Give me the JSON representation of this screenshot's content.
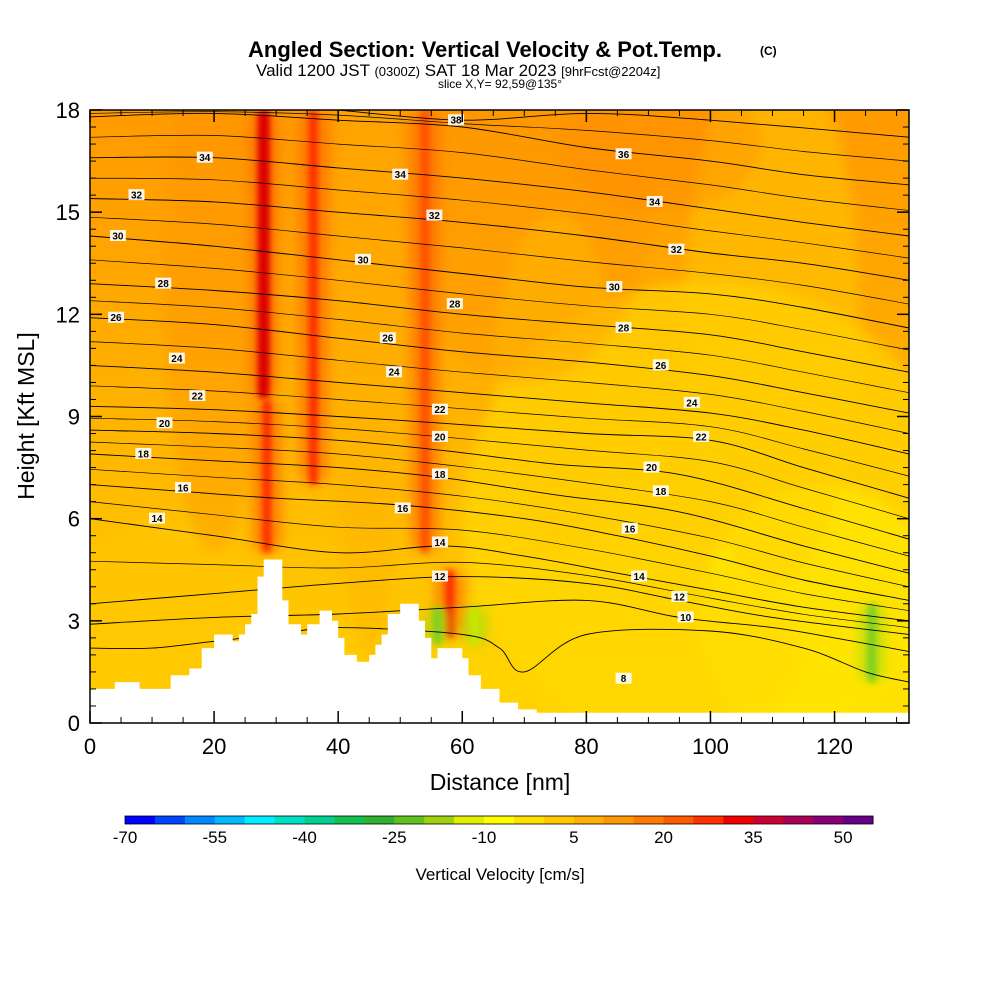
{
  "header": {
    "title": "Angled Section: Vertical Velocity & Pot.Temp.",
    "copyright": "(C)",
    "valid_prefix": "Valid 1200 JST",
    "valid_zulu": "(0300Z)",
    "valid_date": "SAT 18 Mar 2023",
    "forecast": "[9hrFcst@2204z]",
    "slice": "slice X,Y= 92,59@135°"
  },
  "chart_data": {
    "type": "heatmap",
    "title": "Angled Section: Vertical Velocity & Pot.Temp.",
    "xlabel": "Distance [nm]",
    "ylabel": "Height [Kft MSL]",
    "xlim": [
      0,
      132
    ],
    "ylim": [
      0,
      18
    ],
    "x_ticks": [
      "0",
      "20",
      "40",
      "60",
      "80",
      "100",
      "120"
    ],
    "x_tick_values": [
      0,
      20,
      40,
      60,
      80,
      100,
      120
    ],
    "y_ticks": [
      "0",
      "3",
      "6",
      "9",
      "12",
      "15",
      "18"
    ],
    "y_tick_values": [
      0,
      3,
      6,
      9,
      12,
      15,
      18
    ],
    "colorbar": {
      "label": "Vertical Velocity [cm/s]",
      "tick_labels": [
        "-70",
        "-55",
        "-40",
        "-25",
        "-10",
        "5",
        "20",
        "35",
        "50"
      ],
      "colors": [
        "#0000ff",
        "#0044ff",
        "#0088ff",
        "#00bbff",
        "#00eeff",
        "#00e0c0",
        "#00d090",
        "#10c050",
        "#30b030",
        "#60c020",
        "#a0d010",
        "#e0f000",
        "#ffff00",
        "#ffe000",
        "#ffc800",
        "#ffb000",
        "#ff9800",
        "#ff7a00",
        "#ff5a00",
        "#ff3000",
        "#ee0000",
        "#cc0033",
        "#aa0055",
        "#880077",
        "#660088"
      ]
    },
    "vertical_velocity_features": [
      {
        "x": 28,
        "y_min": 9.5,
        "y_max": 18,
        "value": 40
      },
      {
        "x": 28.5,
        "y_min": 5.0,
        "y_max": 9.5,
        "value": 25
      },
      {
        "x": 36,
        "y_min": 7,
        "y_max": 18,
        "value": 25
      },
      {
        "x": 54,
        "y_min": 5,
        "y_max": 18,
        "value": 20
      },
      {
        "x": 58,
        "y_min": 2.5,
        "y_max": 4.5,
        "value": 30
      },
      {
        "x": 56,
        "y_min": 2.3,
        "y_max": 3.4,
        "value": -15
      },
      {
        "x": 62,
        "y_min": 2.3,
        "y_max": 3.4,
        "value": -10
      },
      {
        "x": 126,
        "y_min": 1.2,
        "y_max": 3.5,
        "value": -15
      }
    ],
    "pot_temp_contours": [
      {
        "label": "8",
        "heights": [
          [
            0,
            2.2
          ],
          [
            10,
            2.2
          ],
          [
            20,
            2.4
          ],
          [
            30,
            2.6
          ],
          [
            40,
            2.8
          ],
          [
            60,
            2.6
          ],
          [
            66,
            2.2
          ],
          [
            70,
            1.5
          ],
          [
            80,
            2.6
          ],
          [
            100,
            2.7
          ],
          [
            115,
            2.2
          ],
          [
            125,
            1.5
          ],
          [
            132,
            1.2
          ]
        ]
      },
      {
        "label": "10",
        "heights": [
          [
            0,
            2.9
          ],
          [
            20,
            3.1
          ],
          [
            40,
            3.2
          ],
          [
            60,
            3.4
          ],
          [
            80,
            3.6
          ],
          [
            95,
            3.1
          ],
          [
            110,
            2.8
          ],
          [
            120,
            2.5
          ],
          [
            132,
            2.1
          ]
        ]
      },
      {
        "label": "12",
        "heights": [
          [
            0,
            3.5
          ],
          [
            20,
            3.8
          ],
          [
            40,
            4.1
          ],
          [
            60,
            4.3
          ],
          [
            80,
            4.1
          ],
          [
            95,
            3.6
          ],
          [
            110,
            3.1
          ],
          [
            132,
            2.6
          ]
        ]
      },
      {
        "label": "14",
        "heights": [
          [
            0,
            6.0
          ],
          [
            20,
            5.5
          ],
          [
            40,
            5.0
          ],
          [
            57,
            5.2
          ],
          [
            70,
            4.9
          ],
          [
            85,
            4.4
          ],
          [
            100,
            3.9
          ],
          [
            115,
            3.4
          ],
          [
            132,
            3.0
          ]
        ]
      },
      {
        "label": "16",
        "heights": [
          [
            0,
            7.0
          ],
          [
            15,
            6.8
          ],
          [
            30,
            6.6
          ],
          [
            50,
            6.4
          ],
          [
            70,
            6.0
          ],
          [
            85,
            5.5
          ],
          [
            100,
            4.9
          ],
          [
            115,
            4.2
          ],
          [
            132,
            3.6
          ]
        ]
      },
      {
        "label": "18",
        "heights": [
          [
            0,
            7.9
          ],
          [
            20,
            7.7
          ],
          [
            40,
            7.5
          ],
          [
            57,
            7.2
          ],
          [
            75,
            6.7
          ],
          [
            95,
            6.2
          ],
          [
            115,
            5.2
          ],
          [
            132,
            4.4
          ]
        ]
      },
      {
        "label": "20",
        "heights": [
          [
            0,
            8.6
          ],
          [
            20,
            8.5
          ],
          [
            40,
            8.3
          ],
          [
            57,
            8.0
          ],
          [
            75,
            7.6
          ],
          [
            95,
            7.3
          ],
          [
            115,
            6.3
          ],
          [
            132,
            5.4
          ]
        ]
      },
      {
        "label": "22",
        "heights": [
          [
            0,
            9.3
          ],
          [
            20,
            9.2
          ],
          [
            40,
            9.0
          ],
          [
            57,
            8.8
          ],
          [
            80,
            8.5
          ],
          [
            100,
            8.3
          ],
          [
            115,
            7.5
          ],
          [
            132,
            6.6
          ]
        ]
      },
      {
        "label": "24",
        "heights": [
          [
            0,
            10.5
          ],
          [
            20,
            10.3
          ],
          [
            40,
            10.0
          ],
          [
            60,
            9.7
          ],
          [
            80,
            9.4
          ],
          [
            100,
            9.1
          ],
          [
            115,
            8.6
          ],
          [
            132,
            7.9
          ]
        ]
      },
      {
        "label": "26",
        "heights": [
          [
            0,
            11.9
          ],
          [
            20,
            11.7
          ],
          [
            40,
            11.3
          ],
          [
            60,
            10.9
          ],
          [
            80,
            10.6
          ],
          [
            100,
            10.2
          ],
          [
            115,
            9.7
          ],
          [
            132,
            9.1
          ]
        ]
      },
      {
        "label": "28",
        "heights": [
          [
            0,
            12.9
          ],
          [
            20,
            12.7
          ],
          [
            40,
            12.4
          ],
          [
            60,
            12.0
          ],
          [
            80,
            11.7
          ],
          [
            100,
            11.4
          ],
          [
            115,
            10.9
          ],
          [
            132,
            10.3
          ]
        ]
      },
      {
        "label": "30",
        "heights": [
          [
            0,
            14.3
          ],
          [
            20,
            14.0
          ],
          [
            40,
            13.6
          ],
          [
            60,
            13.2
          ],
          [
            80,
            12.8
          ],
          [
            100,
            12.6
          ],
          [
            115,
            12.2
          ],
          [
            132,
            11.6
          ]
        ]
      },
      {
        "label": "32",
        "heights": [
          [
            0,
            15.4
          ],
          [
            20,
            15.3
          ],
          [
            40,
            15.0
          ],
          [
            60,
            14.7
          ],
          [
            80,
            14.3
          ],
          [
            100,
            13.8
          ],
          [
            115,
            13.5
          ],
          [
            132,
            13.0
          ]
        ]
      },
      {
        "label": "34",
        "heights": [
          [
            0,
            16.6
          ],
          [
            20,
            16.6
          ],
          [
            40,
            16.3
          ],
          [
            60,
            16.0
          ],
          [
            80,
            15.6
          ],
          [
            100,
            15.1
          ],
          [
            115,
            14.7
          ],
          [
            132,
            14.3
          ]
        ]
      },
      {
        "label": "36",
        "heights": [
          [
            0,
            17.8
          ],
          [
            20,
            17.9
          ],
          [
            40,
            17.7
          ],
          [
            60,
            17.5
          ],
          [
            80,
            16.9
          ],
          [
            100,
            16.5
          ],
          [
            115,
            16.1
          ],
          [
            132,
            15.8
          ]
        ]
      },
      {
        "label": "38",
        "heights": [
          [
            40,
            18.0
          ],
          [
            60,
            17.7
          ],
          [
            80,
            17.9
          ],
          [
            100,
            17.7
          ],
          [
            132,
            17.2
          ]
        ]
      }
    ],
    "contour_label_positions": [
      {
        "label": "34",
        "x": 18.5,
        "y": 16.6
      },
      {
        "label": "32",
        "x": 7.5,
        "y": 15.5
      },
      {
        "label": "30",
        "x": 4.5,
        "y": 14.3
      },
      {
        "label": "28",
        "x": 11.8,
        "y": 12.9
      },
      {
        "label": "26",
        "x": 4.2,
        "y": 11.9
      },
      {
        "label": "24",
        "x": 14.0,
        "y": 10.7
      },
      {
        "label": "22",
        "x": 17.3,
        "y": 9.6
      },
      {
        "label": "20",
        "x": 12.0,
        "y": 8.8
      },
      {
        "label": "18",
        "x": 8.6,
        "y": 7.9
      },
      {
        "label": "16",
        "x": 15.0,
        "y": 6.9
      },
      {
        "label": "14",
        "x": 10.8,
        "y": 6.0
      },
      {
        "label": "38",
        "x": 59.0,
        "y": 17.7
      },
      {
        "label": "34",
        "x": 50.0,
        "y": 16.1
      },
      {
        "label": "32",
        "x": 55.5,
        "y": 14.9
      },
      {
        "label": "30",
        "x": 44.0,
        "y": 13.6
      },
      {
        "label": "28",
        "x": 58.8,
        "y": 12.3
      },
      {
        "label": "26",
        "x": 48.0,
        "y": 11.3
      },
      {
        "label": "24",
        "x": 49.0,
        "y": 10.3
      },
      {
        "label": "22",
        "x": 56.4,
        "y": 9.2
      },
      {
        "label": "20",
        "x": 56.4,
        "y": 8.4
      },
      {
        "label": "18",
        "x": 56.4,
        "y": 7.3
      },
      {
        "label": "16",
        "x": 50.4,
        "y": 6.3
      },
      {
        "label": "14",
        "x": 56.4,
        "y": 5.3
      },
      {
        "label": "12",
        "x": 56.4,
        "y": 4.3
      },
      {
        "label": "36",
        "x": 86.0,
        "y": 16.7
      },
      {
        "label": "34",
        "x": 91.0,
        "y": 15.3
      },
      {
        "label": "32",
        "x": 94.5,
        "y": 13.9
      },
      {
        "label": "30",
        "x": 84.5,
        "y": 12.8
      },
      {
        "label": "28",
        "x": 86.0,
        "y": 11.6
      },
      {
        "label": "26",
        "x": 92.0,
        "y": 10.5
      },
      {
        "label": "24",
        "x": 97.0,
        "y": 9.4
      },
      {
        "label": "22",
        "x": 98.5,
        "y": 8.4
      },
      {
        "label": "20",
        "x": 90.5,
        "y": 7.5
      },
      {
        "label": "18",
        "x": 92.0,
        "y": 6.8
      },
      {
        "label": "16",
        "x": 87.0,
        "y": 5.7
      },
      {
        "label": "14",
        "x": 88.5,
        "y": 4.3
      },
      {
        "label": "12",
        "x": 95.0,
        "y": 3.7
      },
      {
        "label": "10",
        "x": 96.0,
        "y": 3.1
      },
      {
        "label": "8",
        "x": 86.0,
        "y": 1.3
      }
    ],
    "terrain": [
      [
        0,
        1.0
      ],
      [
        4,
        1.0
      ],
      [
        4,
        1.2
      ],
      [
        8,
        1.2
      ],
      [
        8,
        1.0
      ],
      [
        13,
        1.0
      ],
      [
        13,
        1.4
      ],
      [
        16,
        1.4
      ],
      [
        16,
        1.6
      ],
      [
        18,
        1.6
      ],
      [
        18,
        2.2
      ],
      [
        20,
        2.2
      ],
      [
        20,
        2.6
      ],
      [
        23,
        2.6
      ],
      [
        23,
        2.4
      ],
      [
        24,
        2.4
      ],
      [
        24,
        2.6
      ],
      [
        25,
        2.6
      ],
      [
        25,
        2.9
      ],
      [
        26,
        2.9
      ],
      [
        26,
        3.2
      ],
      [
        27,
        3.2
      ],
      [
        27,
        4.3
      ],
      [
        28,
        4.3
      ],
      [
        28,
        4.8
      ],
      [
        31,
        4.8
      ],
      [
        31,
        3.6
      ],
      [
        32,
        3.6
      ],
      [
        32,
        2.9
      ],
      [
        34,
        2.9
      ],
      [
        34,
        2.6
      ],
      [
        35,
        2.6
      ],
      [
        35,
        2.9
      ],
      [
        37,
        2.9
      ],
      [
        37,
        3.3
      ],
      [
        39,
        3.3
      ],
      [
        39,
        3.0
      ],
      [
        40,
        3.0
      ],
      [
        40,
        2.5
      ],
      [
        41,
        2.5
      ],
      [
        41,
        2.0
      ],
      [
        43,
        2.0
      ],
      [
        43,
        1.8
      ],
      [
        45,
        1.8
      ],
      [
        45,
        2.0
      ],
      [
        46,
        2.0
      ],
      [
        46,
        2.3
      ],
      [
        47,
        2.3
      ],
      [
        47,
        2.6
      ],
      [
        48,
        2.6
      ],
      [
        48,
        3.2
      ],
      [
        50,
        3.2
      ],
      [
        50,
        3.5
      ],
      [
        53,
        3.5
      ],
      [
        53,
        3.0
      ],
      [
        54,
        3.0
      ],
      [
        54,
        2.5
      ],
      [
        55,
        2.5
      ],
      [
        55,
        1.9
      ],
      [
        56,
        1.9
      ],
      [
        56,
        2.2
      ],
      [
        57,
        2.2
      ],
      [
        57,
        2.2
      ],
      [
        60,
        2.2
      ],
      [
        60,
        1.9
      ],
      [
        61,
        1.9
      ],
      [
        61,
        1.4
      ],
      [
        63,
        1.4
      ],
      [
        63,
        1.0
      ],
      [
        66,
        1.0
      ],
      [
        66,
        0.6
      ],
      [
        69,
        0.6
      ],
      [
        69,
        0.4
      ],
      [
        72,
        0.4
      ],
      [
        72,
        0.3
      ],
      [
        132,
        0.3
      ]
    ]
  }
}
